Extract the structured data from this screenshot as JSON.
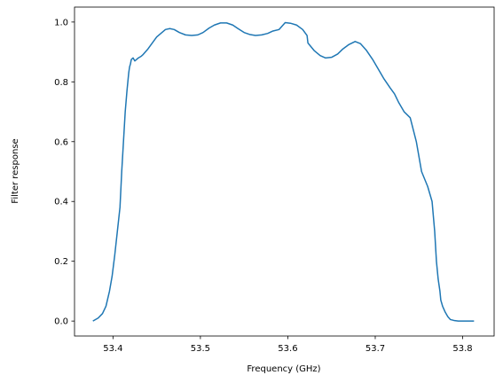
{
  "chart_data": {
    "type": "line",
    "title": "",
    "xlabel": "Frequency (GHz)",
    "ylabel": "Filter response",
    "xlim": [
      53.356,
      53.836
    ],
    "ylim": [
      -0.05,
      1.05
    ],
    "xticks": [
      53.4,
      53.5,
      53.6,
      53.7,
      53.8
    ],
    "xtick_labels": [
      "53.4",
      "53.5",
      "53.6",
      "53.7",
      "53.8"
    ],
    "yticks": [
      0.0,
      0.2,
      0.4,
      0.6,
      0.8,
      1.0
    ],
    "ytick_labels": [
      "0.0",
      "0.2",
      "0.4",
      "0.6",
      "0.8",
      "1.0"
    ],
    "grid": false,
    "series": [
      {
        "color": "#1f77b4",
        "x": [
          53.377,
          53.383,
          53.388,
          53.392,
          53.396,
          53.399,
          53.402,
          53.405,
          53.408,
          53.41,
          53.412,
          53.414,
          53.416,
          53.417,
          53.418,
          53.419,
          53.42,
          53.421,
          53.423,
          53.425,
          53.427,
          53.429,
          53.432,
          53.434,
          53.44,
          53.45,
          53.46,
          53.465,
          53.47,
          53.476,
          53.483,
          53.49,
          53.497,
          53.503,
          53.51,
          53.516,
          53.523,
          53.53,
          53.537,
          53.543,
          53.55,
          53.557,
          53.563,
          53.57,
          53.577,
          53.583,
          53.59,
          53.597,
          53.603,
          53.61,
          53.617,
          53.622,
          53.623,
          53.63,
          53.637,
          53.643,
          53.65,
          53.657,
          53.663,
          53.67,
          53.677,
          53.683,
          53.69,
          53.697,
          53.703,
          53.71,
          53.717,
          53.722,
          53.727,
          53.733,
          53.74,
          53.747,
          53.753,
          53.76,
          53.765,
          53.768,
          53.77,
          53.772,
          53.774,
          53.775,
          53.777,
          53.78,
          53.783,
          53.786,
          53.79,
          53.795,
          53.8,
          53.806,
          53.813
        ],
        "y": [
          0.0,
          0.01,
          0.025,
          0.05,
          0.1,
          0.15,
          0.22,
          0.3,
          0.38,
          0.5,
          0.6,
          0.7,
          0.77,
          0.8,
          0.83,
          0.85,
          0.86,
          0.875,
          0.88,
          0.87,
          0.875,
          0.88,
          0.885,
          0.89,
          0.91,
          0.95,
          0.975,
          0.978,
          0.975,
          0.965,
          0.957,
          0.955,
          0.957,
          0.965,
          0.98,
          0.99,
          0.997,
          0.997,
          0.99,
          0.978,
          0.965,
          0.958,
          0.955,
          0.957,
          0.962,
          0.97,
          0.975,
          0.998,
          0.996,
          0.99,
          0.975,
          0.955,
          0.93,
          0.905,
          0.888,
          0.88,
          0.882,
          0.893,
          0.91,
          0.925,
          0.935,
          0.928,
          0.905,
          0.875,
          0.845,
          0.81,
          0.78,
          0.76,
          0.73,
          0.7,
          0.68,
          0.6,
          0.5,
          0.45,
          0.4,
          0.3,
          0.2,
          0.14,
          0.1,
          0.07,
          0.05,
          0.03,
          0.015,
          0.005,
          0.002,
          0.0,
          0.0,
          0.0,
          0.0
        ]
      }
    ]
  }
}
